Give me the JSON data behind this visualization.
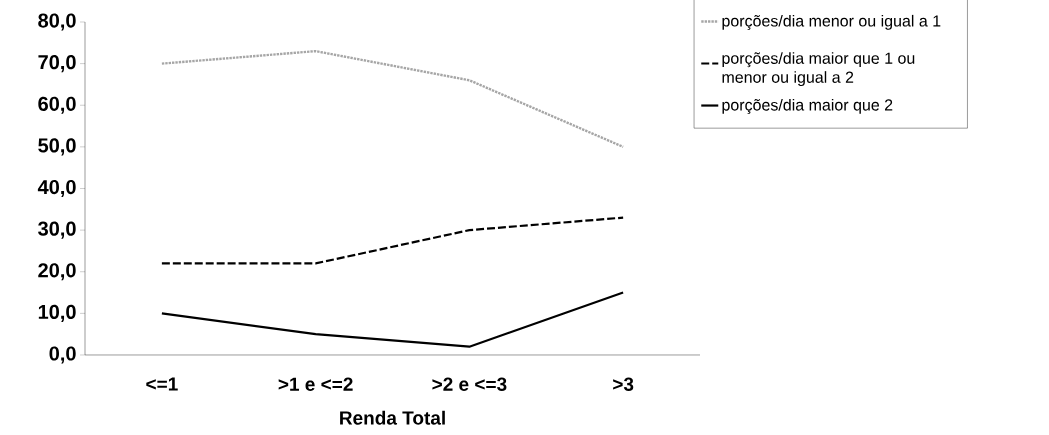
{
  "chart_data": {
    "type": "line",
    "xlabel": "Renda Total",
    "categories": [
      "<=1",
      ">1 e <=2",
      ">2 e <=3",
      ">3"
    ],
    "series": [
      {
        "name": "porções/dia menor ou igual a 1",
        "color": "#a6a6a6",
        "line_style": "dotted",
        "values": [
          70,
          73,
          66,
          50
        ]
      },
      {
        "name": "porções/dia maior que 1 ou menor ou igual a 2",
        "color": "#000000",
        "line_style": "dashed",
        "values": [
          22,
          22,
          30,
          33
        ]
      },
      {
        "name": "porções/dia maior que 2",
        "color": "#000000",
        "line_style": "solid",
        "values": [
          10,
          5,
          2,
          15
        ]
      }
    ],
    "ylim": [
      0,
      80
    ],
    "yticks": [
      {
        "value": 0,
        "label": "0,0"
      },
      {
        "value": 10,
        "label": "10,0"
      },
      {
        "value": 20,
        "label": "20,0"
      },
      {
        "value": 30,
        "label": "30,0"
      },
      {
        "value": 40,
        "label": "40,0"
      },
      {
        "value": 50,
        "label": "50,0"
      },
      {
        "value": 60,
        "label": "60,0"
      },
      {
        "value": 70,
        "label": "70,0"
      },
      {
        "value": 80,
        "label": "80,0"
      }
    ],
    "grid": false,
    "legend": "top right",
    "marker": "none"
  }
}
